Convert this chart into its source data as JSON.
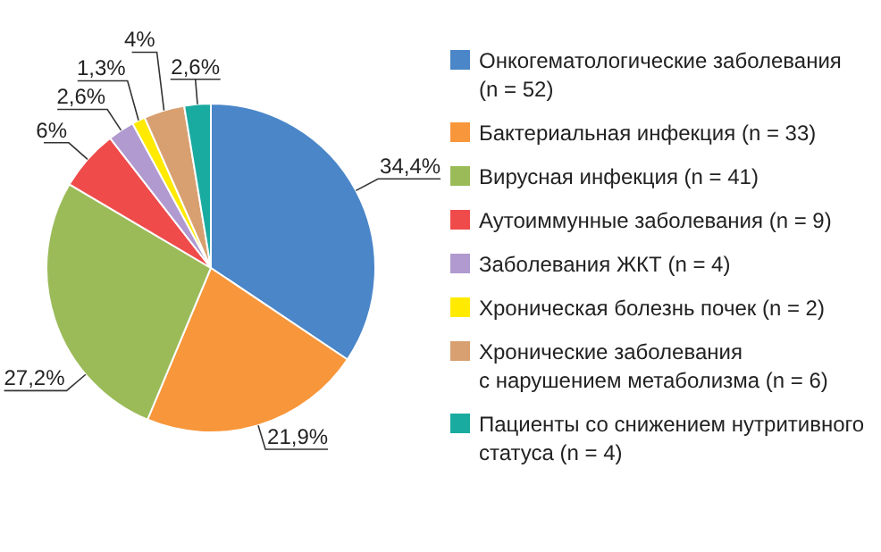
{
  "chart_data": {
    "type": "pie",
    "categories": [
      "Онкогематологические заболевания\n(n = 52)",
      "Бактериальная инфекция (n = 33)",
      "Вирусная инфекция (n = 41)",
      "Аутоиммунные заболевания (n = 9)",
      "Заболевания ЖКТ (n = 4)",
      "Хроническая болезнь почек (n = 2)",
      "Хронические заболевания\nс нарушением метаболизма (n = 6)",
      "Пациенты со снижением нутритивного\nстатуса (n = 4)"
    ],
    "values": [
      34.4,
      21.9,
      27.2,
      6,
      2.6,
      1.3,
      4,
      2.6
    ],
    "value_labels": [
      "34,4%",
      "21,9%",
      "27,2%",
      "6%",
      "2,6%",
      "1,3%",
      "4%",
      "2,6%"
    ],
    "colors": [
      "#4a86c8",
      "#f7963a",
      "#9bbb59",
      "#ef4b4b",
      "#b09ad0",
      "#ffea00",
      "#d8a070",
      "#1aaba0"
    ],
    "legend": "right"
  }
}
